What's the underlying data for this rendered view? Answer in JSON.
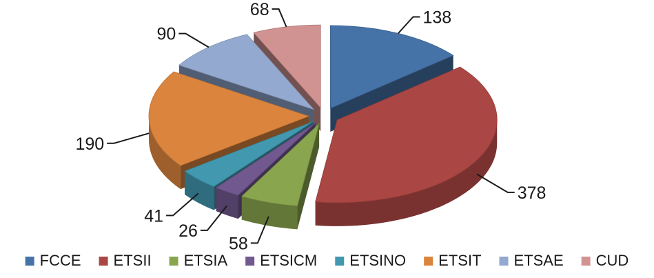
{
  "chart_data": {
    "type": "pie",
    "variant": "3d-exploded",
    "title": "",
    "categories": [
      "FCCE",
      "ETSII",
      "ETSIA",
      "ETSICM",
      "ETSINO",
      "ETSIT",
      "ETSAE",
      "CUD"
    ],
    "values": [
      138,
      378,
      58,
      26,
      41,
      190,
      90,
      68
    ],
    "colors": [
      "#4572A7",
      "#AA4643",
      "#89A54E",
      "#71588F",
      "#4198AF",
      "#DB843D",
      "#93A9CF",
      "#D19392"
    ],
    "legend": {
      "position": "bottom",
      "entries": [
        "FCCE",
        "ETSII",
        "ETSIA",
        "ETSICM",
        "ETSINO",
        "ETSIT",
        "ETSAE",
        "CUD"
      ]
    },
    "data_labels": [
      "138",
      "378",
      "58",
      "26",
      "41",
      "190",
      "90",
      "68"
    ]
  }
}
